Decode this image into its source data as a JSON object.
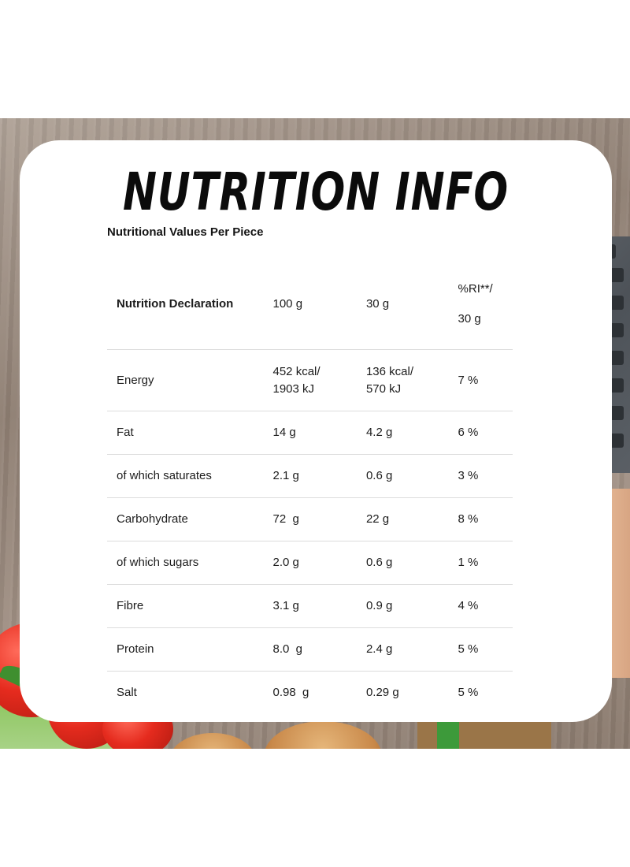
{
  "title": "NUTRITION INFO",
  "subtitle": "Nutritional Values Per Piece",
  "table": {
    "headers": {
      "declaration": "Nutrition Declaration",
      "per100": "100 g",
      "per30": "30 g",
      "ri_line1": "%RI**/",
      "ri_line2": "30 g"
    },
    "rows": [
      {
        "name": "Energy",
        "per100": "452 kcal/\n1903 kJ",
        "per30": "136 kcal/\n570 kJ",
        "ri": "7 %"
      },
      {
        "name": "Fat",
        "per100": "14 g",
        "per30": "4.2 g",
        "ri": "6 %"
      },
      {
        "name": "of which saturates",
        "per100": "2.1 g",
        "per30": "0.6 g",
        "ri": "3 %"
      },
      {
        "name": "Carbohydrate",
        "per100": "72  g",
        "per30": "22 g",
        "ri": "8 %"
      },
      {
        "name": "of which sugars",
        "per100": "2.0 g",
        "per30": "0.6 g",
        "ri": "1 %"
      },
      {
        "name": "Fibre",
        "per100": "3.1 g",
        "per30": "0.9 g",
        "ri": "4 %"
      },
      {
        "name": "Protein",
        "per100": "8.0  g",
        "per30": "2.4 g",
        "ri": "5 %"
      },
      {
        "name": "Salt",
        "per100": "0.98  g",
        "per30": "0.29 g",
        "ri": "5 %"
      }
    ]
  }
}
